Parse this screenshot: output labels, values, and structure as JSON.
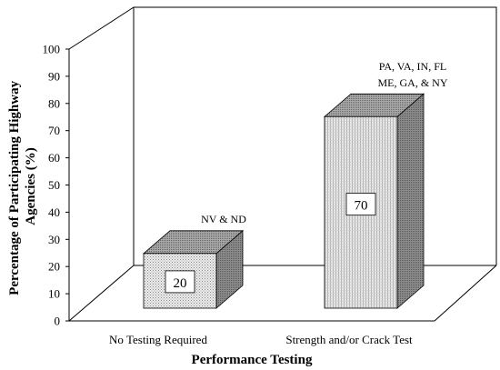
{
  "chart_data": {
    "type": "bar",
    "title": "",
    "xlabel": "Performance Testing",
    "ylabel_lines": [
      "Percentage of Participating Highway",
      "Agencies (%)"
    ],
    "ylim": [
      0,
      100
    ],
    "yticks": [
      "0",
      "10",
      "20",
      "30",
      "40",
      "50",
      "60",
      "70",
      "80",
      "90",
      "100"
    ],
    "categories": [
      "No Testing Required",
      "Strength and/or Crack Test"
    ],
    "values": [
      20,
      70
    ],
    "value_labels": [
      "20",
      "70"
    ],
    "annotations": [
      [
        "NV & ND"
      ],
      [
        "PA, VA, IN, FL",
        "ME, GA, & NY"
      ]
    ],
    "grid": false,
    "legend": "none"
  }
}
